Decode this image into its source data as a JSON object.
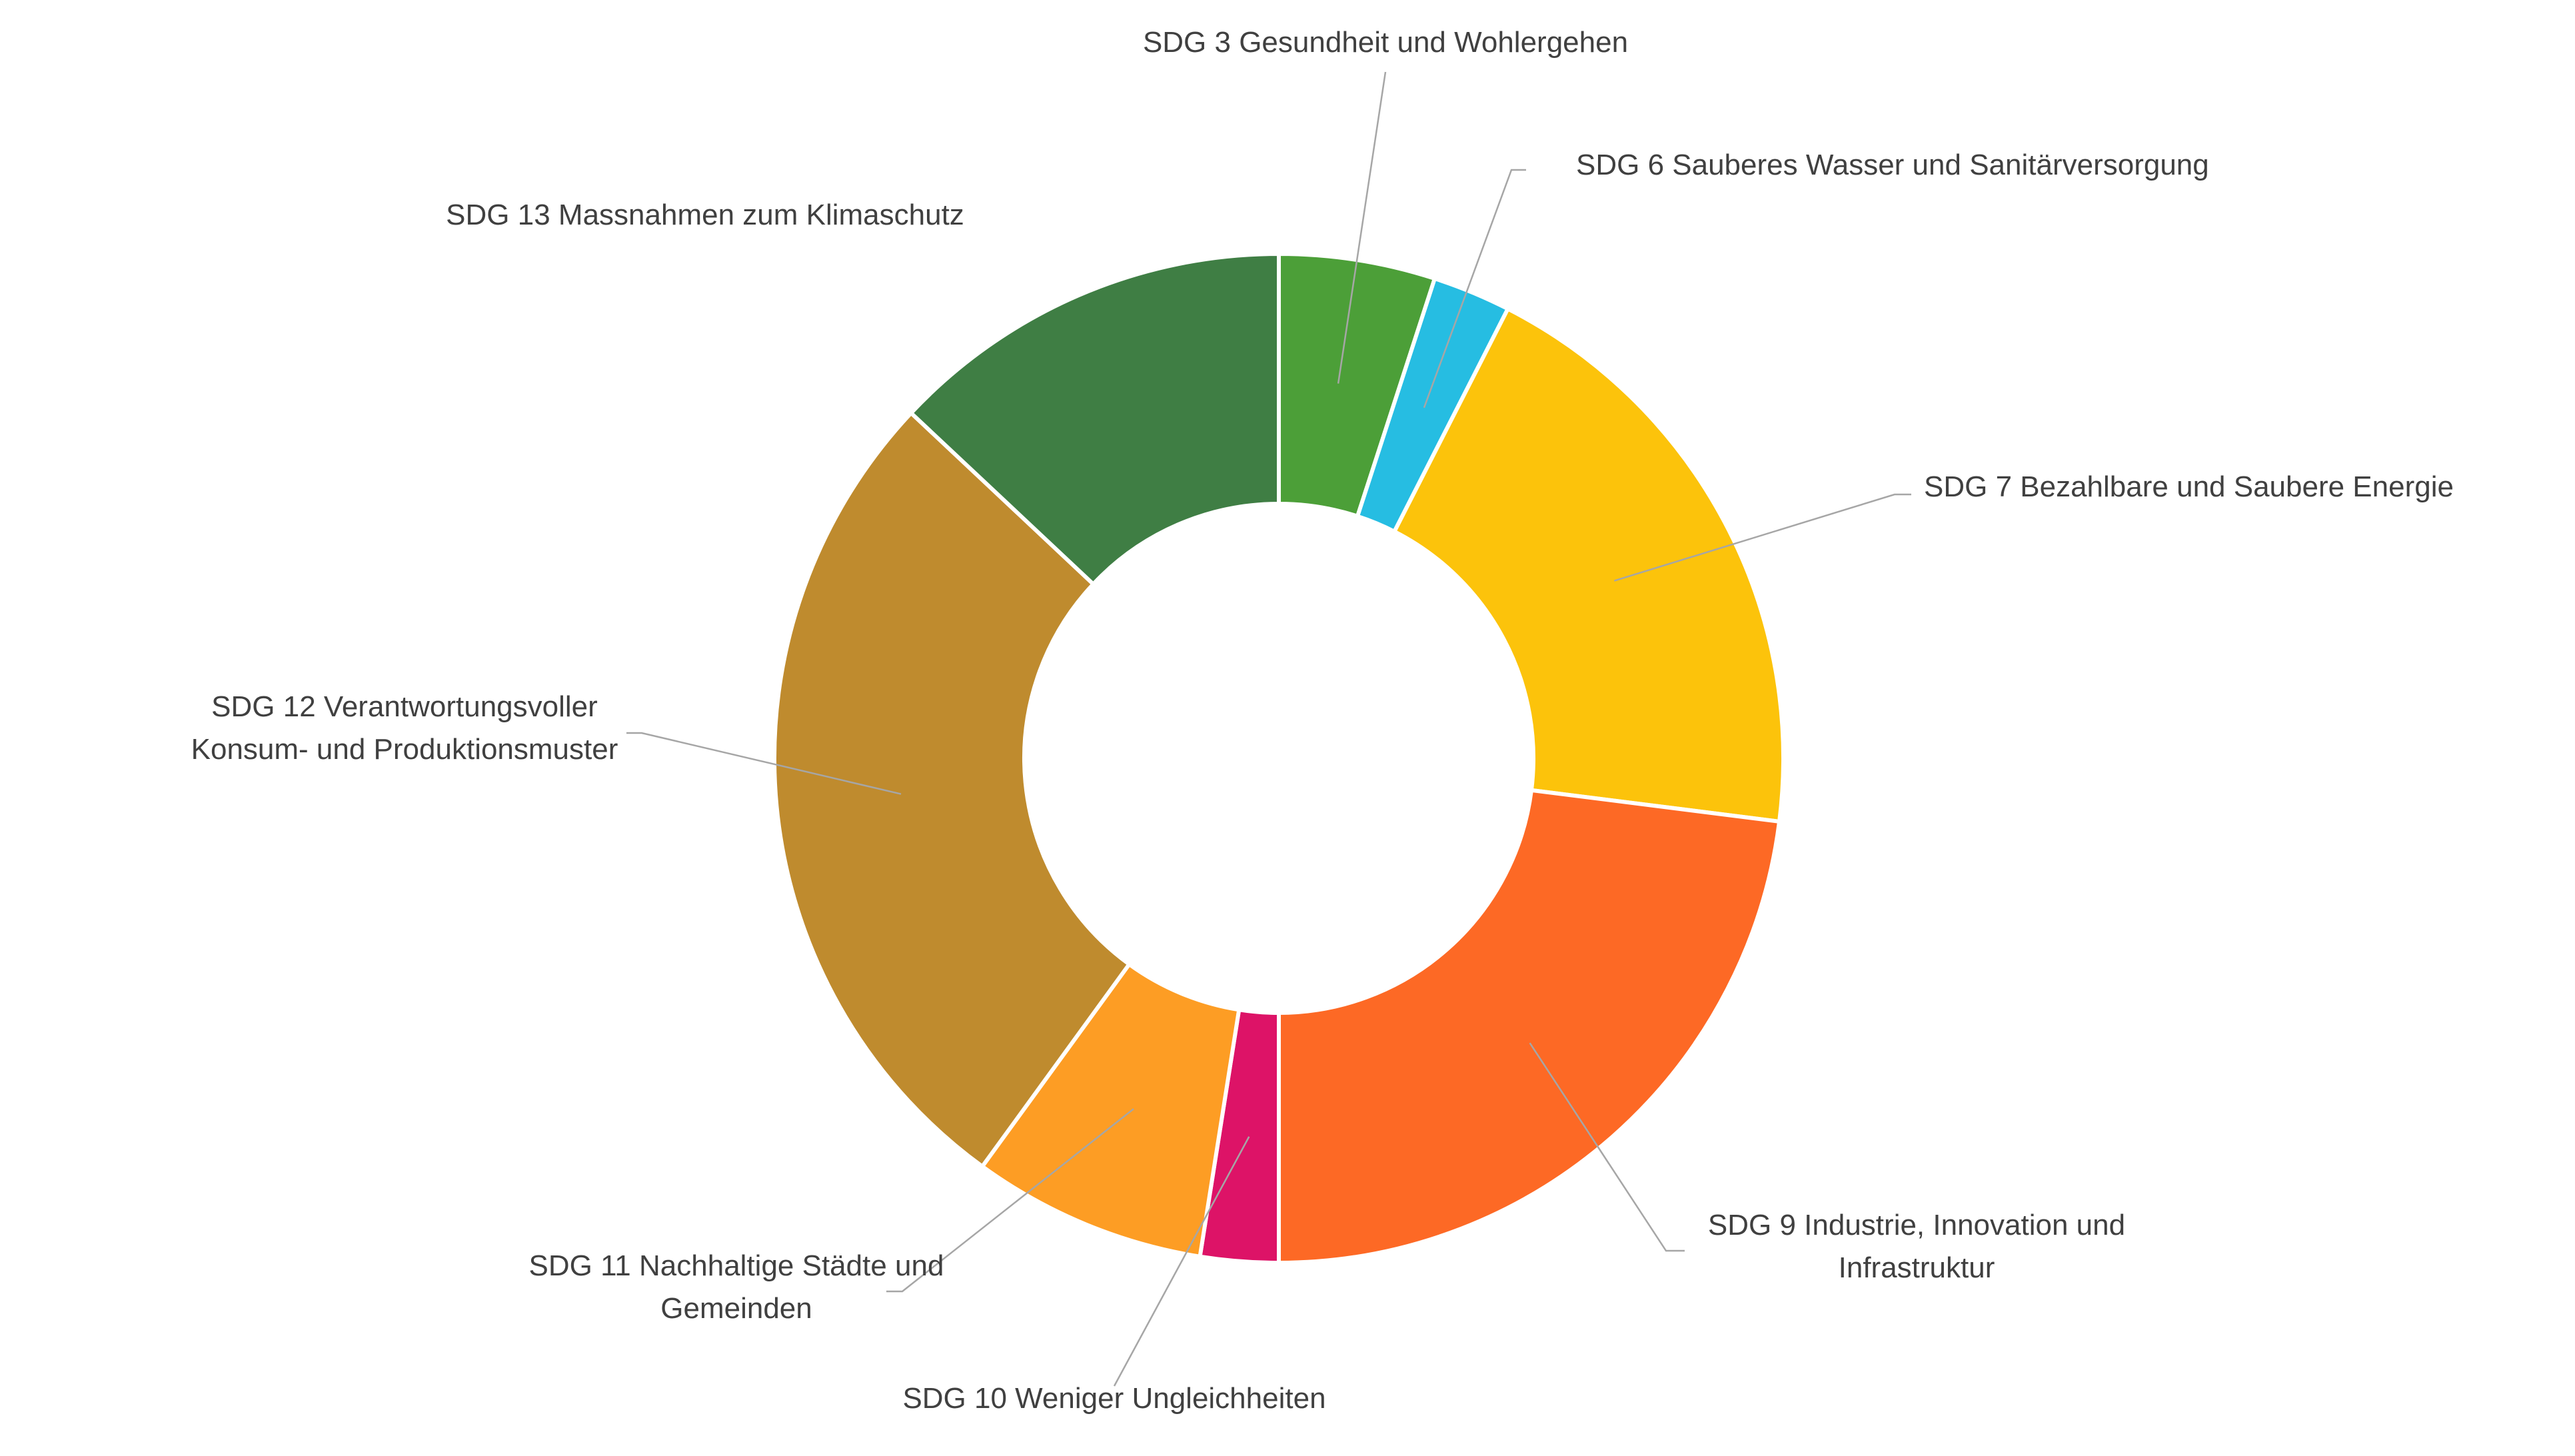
{
  "chart_data": {
    "type": "pie",
    "variant": "donut",
    "legend": "none",
    "labels_outside_with_leader_lines": true,
    "slices": [
      {
        "label_lines": [
          "SDG 3 Gesundheit und Wohlergehen"
        ],
        "value": 5.0,
        "color": "#4c9f38"
      },
      {
        "label_lines": [
          "SDG 6 Sauberes Wasser und Sanitärversorgung"
        ],
        "value": 2.5,
        "color": "#26bde2"
      },
      {
        "label_lines": [
          "SDG 7 Bezahlbare und Saubere Energie"
        ],
        "value": 19.5,
        "color": "#fcc30b"
      },
      {
        "label_lines": [
          "SDG 9 Industrie, Innovation und",
          "Infrastruktur"
        ],
        "value": 23.0,
        "color": "#fd6925"
      },
      {
        "label_lines": [
          "SDG 10 Weniger Ungleichheiten"
        ],
        "value": 2.5,
        "color": "#dd1367"
      },
      {
        "label_lines": [
          "SDG 11 Nachhaltige Städte und",
          "Gemeinden"
        ],
        "value": 7.5,
        "color": "#fd9d24"
      },
      {
        "label_lines": [
          "SDG 12 Verantwortungsvoller",
          "Konsum- und Produktionsmuster"
        ],
        "value": 27.0,
        "color": "#bf8b2e"
      },
      {
        "label_lines": [
          "SDG 13 Massnahmen zum Klimaschutz"
        ],
        "value": 13.0,
        "color": "#3f7e44"
      }
    ]
  }
}
